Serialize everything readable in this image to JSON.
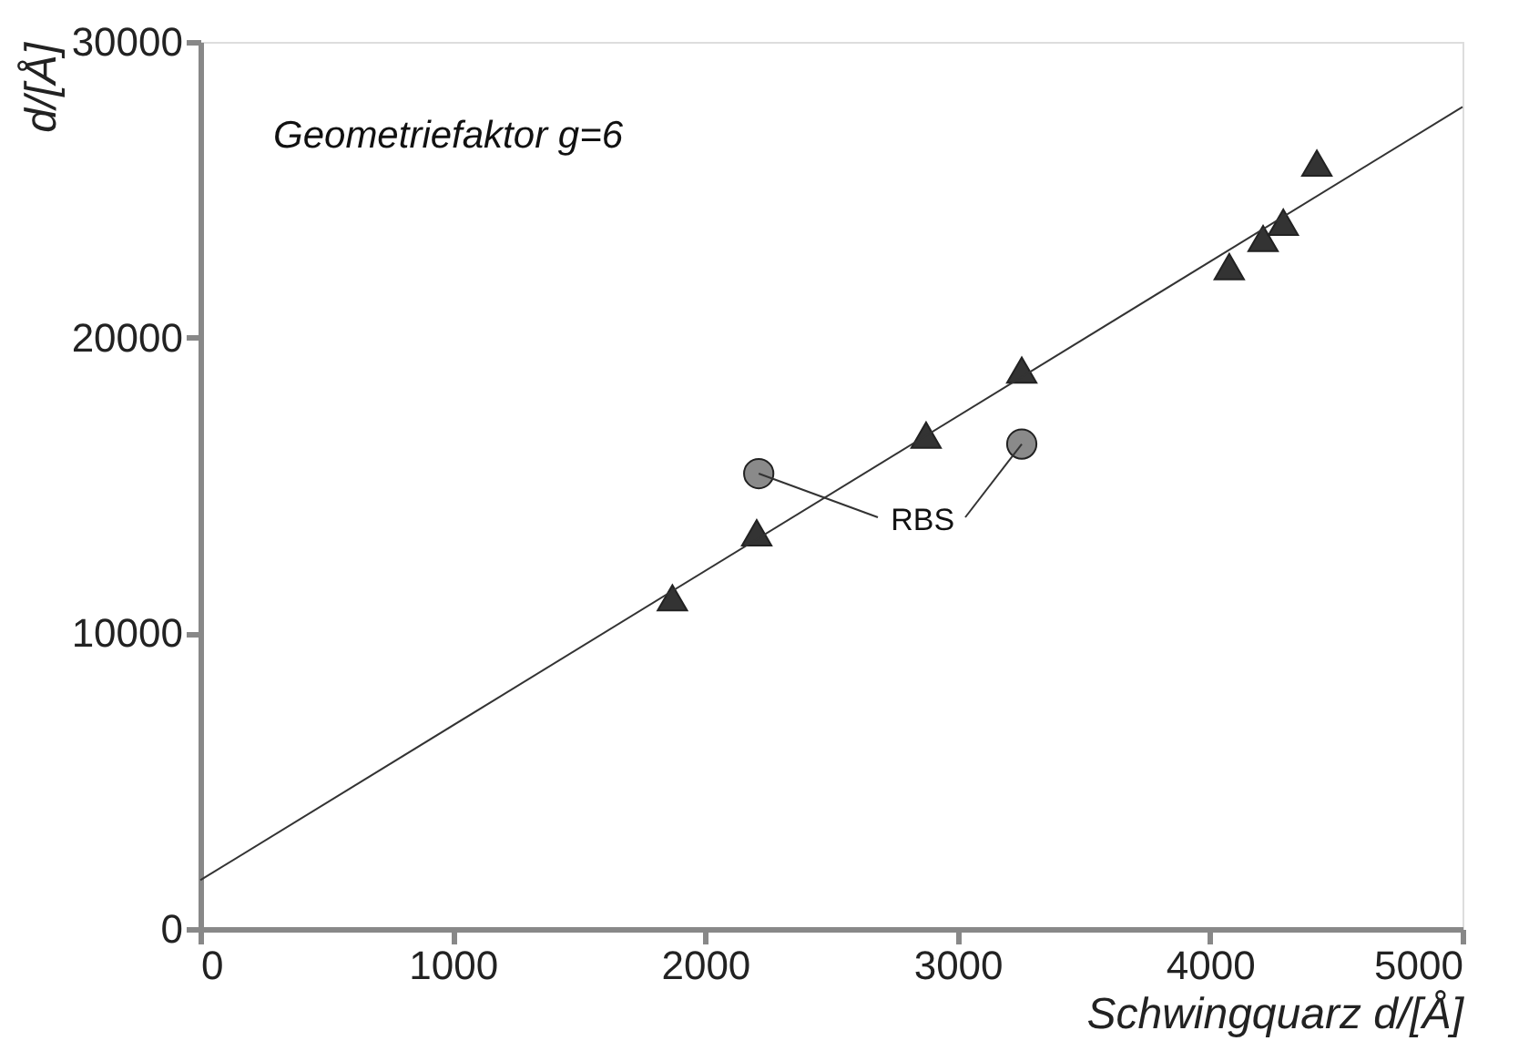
{
  "chart_data": {
    "type": "scatter",
    "xlabel": "Schwingquarz   d/[Å]",
    "ylabel": "d/[Å]",
    "xlim": [
      0,
      5000
    ],
    "ylim": [
      0,
      30000
    ],
    "xticks": [
      0,
      1000,
      2000,
      3000,
      4000,
      5000
    ],
    "yticks": [
      0,
      10000,
      20000,
      30000
    ],
    "grid": false,
    "series": [
      {
        "marker": "triangle",
        "color": "#333333",
        "x": [
          1870,
          2204,
          2875,
          3254,
          4076,
          4210,
          4290,
          4423
        ],
        "values": [
          11200,
          13400,
          16700,
          18900,
          22400,
          23350,
          23900,
          25900
        ]
      },
      {
        "marker": "circle",
        "color": "#8a8a8a",
        "x": [
          2212,
          3254
        ],
        "values": [
          15400,
          16400
        ]
      },
      {
        "type": "line",
        "color": "#333333",
        "x": [
          0,
          5000
        ],
        "values": [
          1650,
          27800
        ]
      }
    ],
    "annotations": [
      "Geometriefaktor g=6",
      {
        "text": "RBS",
        "x": 2212,
        "y": 15400
      }
    ]
  }
}
